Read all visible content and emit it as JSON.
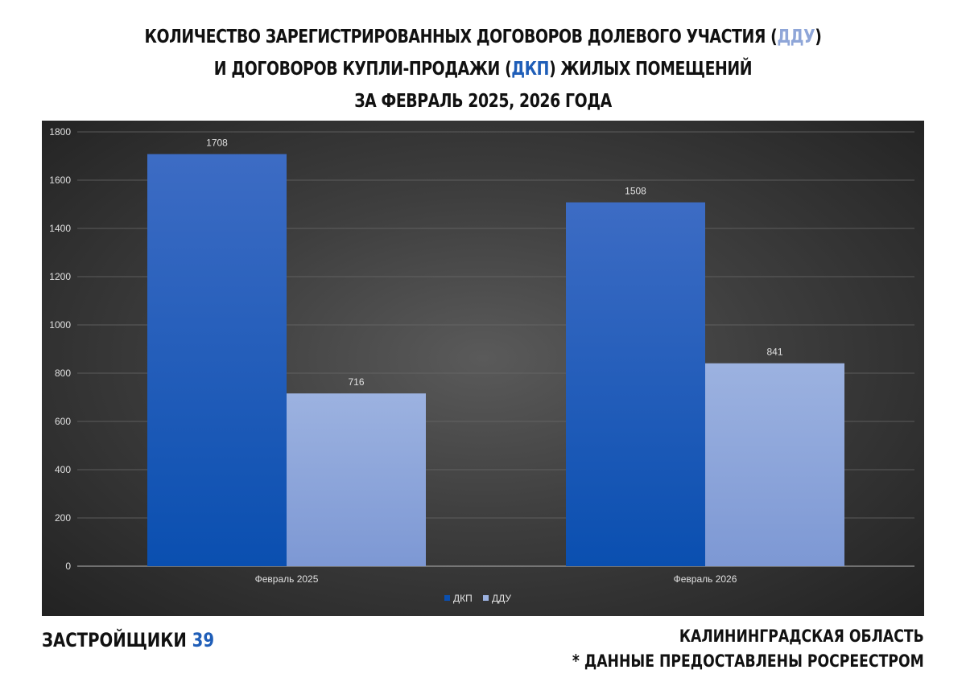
{
  "title": {
    "line1_prefix": "КОЛИЧЕСТВО ЗАРЕГИСТРИРОВАННЫХ ДОГОВОРОВ ДОЛЕВОГО УЧАСТИЯ (",
    "line1_accent": "ДДУ",
    "line1_suffix": ")",
    "line2_prefix": "И ДОГОВОРОВ КУПЛИ-ПРОДАЖИ (",
    "line2_accent": "ДКП",
    "line2_suffix": ") ЖИЛЫХ ПОМЕЩЕНИЙ",
    "line3": "ЗА ФЕВРАЛЬ 2025, 2026 ГОДА"
  },
  "footer": {
    "brand_text": "ЗАСТРОЙЩИКИ",
    "brand_number": "39",
    "region": "КАЛИНИНГРАДСКАЯ ОБЛАСТЬ",
    "source": "* ДАННЫЕ ПРЕДОСТАВЛЕНЫ РОСРЕЕСТРОМ"
  },
  "colors": {
    "dkp_top": "#3d6cc4",
    "dkp_bottom": "#0a4fb0",
    "ddu_top": "#9cb2e0",
    "ddu_bottom": "#7d98d4",
    "title_ddu": "#8fa6d8",
    "title_dkp": "#1f5eb8"
  },
  "chart_data": {
    "type": "bar",
    "categories": [
      "Февраль 2025",
      "Февраль 2026"
    ],
    "series": [
      {
        "name": "ДКП",
        "values": [
          1708,
          1508
        ]
      },
      {
        "name": "ДДУ",
        "values": [
          716,
          841
        ]
      }
    ],
    "ylim": [
      0,
      1800
    ],
    "yticks": [
      0,
      200,
      400,
      600,
      800,
      1000,
      1200,
      1400,
      1600,
      1800
    ],
    "grid": true,
    "legend": "bottom",
    "data_labels": true
  }
}
